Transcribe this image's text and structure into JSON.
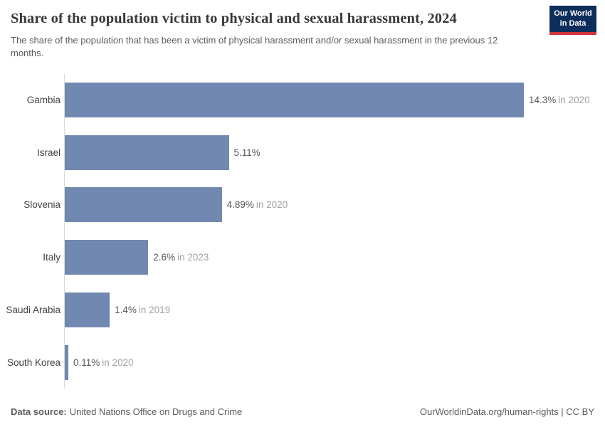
{
  "header": {
    "title": "Share of the population victim to physical and sexual harassment, 2024",
    "subtitle": "The share of the population that has been a victim of physical harassment and/or sexual harassment in the previous 12 months.",
    "logo": {
      "line1": "Our World",
      "line2": "in Data"
    }
  },
  "chart_data": {
    "type": "bar",
    "orientation": "horizontal",
    "title": "Share of the population victim to physical and sexual harassment, 2024",
    "categories": [
      "Gambia",
      "Israel",
      "Slovenia",
      "Italy",
      "Saudi Arabia",
      "South Korea"
    ],
    "values": [
      14.3,
      5.11,
      4.89,
      2.6,
      1.4,
      0.11
    ],
    "value_labels": [
      "14.3%",
      "5.11%",
      "4.89%",
      "2.6%",
      "1.4%",
      "0.11%"
    ],
    "year_notes": [
      "in 2020",
      "",
      "in 2020",
      "in 2023",
      "in 2019",
      "in 2020"
    ],
    "xlim": [
      0,
      14.3
    ],
    "grid": false,
    "legend": "none",
    "bar_color": "#7189b0"
  },
  "footer": {
    "source_label": "Data source:",
    "source_text": "United Nations Office on Drugs and Crime",
    "attribution": "OurWorldinData.org/human-rights | CC BY"
  },
  "colors": {
    "bar": "#7189b0",
    "axis_line": "#dbdbdb",
    "logo_navy": "#0d2e5b",
    "logo_red": "#cf3339",
    "title_text": "#383838",
    "subtitle_text": "#5b5b5b",
    "value_text": "#585858",
    "year_text": "#a1a1a1"
  }
}
